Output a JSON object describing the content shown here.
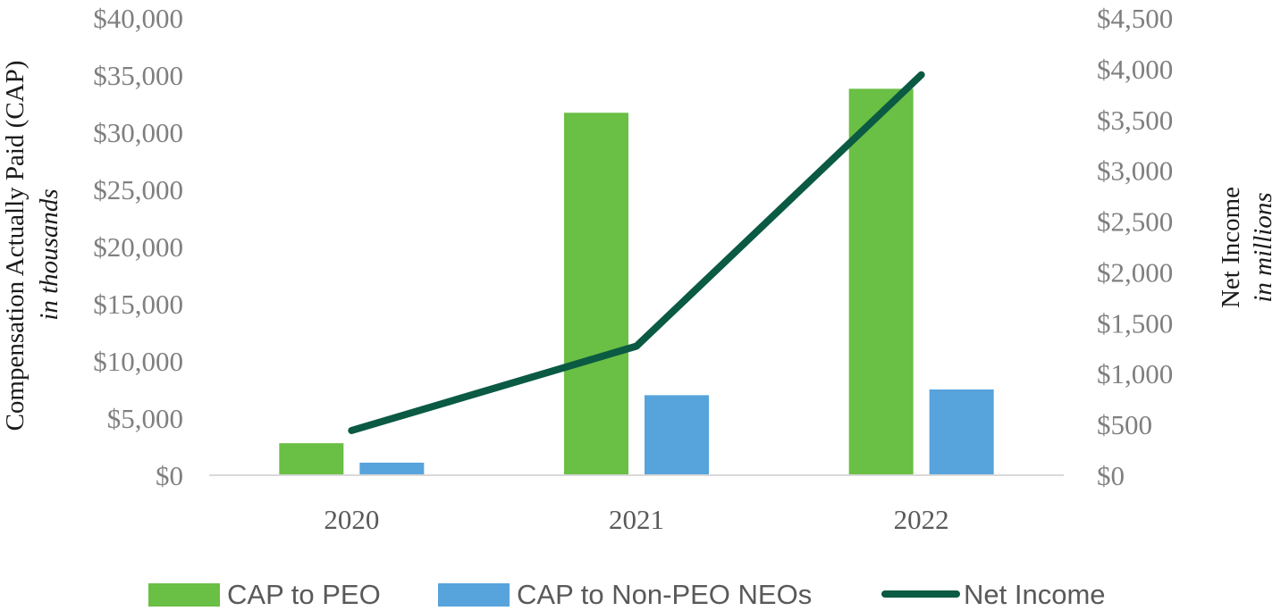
{
  "chart_data": {
    "type": "bar",
    "categories": [
      "2020",
      "2021",
      "2022"
    ],
    "series": [
      {
        "name": "CAP to PEO",
        "kind": "bar",
        "axis": "left",
        "color": "#6abf45",
        "values": [
          2800,
          31700,
          33800
        ]
      },
      {
        "name": "CAP to Non-PEO NEOs",
        "kind": "bar",
        "axis": "left",
        "color": "#57a3dc",
        "values": [
          1100,
          7000,
          7500
        ]
      },
      {
        "name": "Net Income",
        "kind": "line",
        "axis": "right",
        "color": "#0b5a43",
        "values": [
          440,
          1270,
          3940
        ]
      }
    ],
    "y_left": {
      "label": "Compensation Actually Paid (CAP)",
      "sublabel": "in thousands",
      "ylim": [
        0,
        40000
      ],
      "ticks": [
        "$0",
        "$5,000",
        "$10,000",
        "$15,000",
        "$20,000",
        "$25,000",
        "$30,000",
        "$35,000",
        "$40,000"
      ]
    },
    "y_right": {
      "label": "Net Income",
      "sublabel": "in millions",
      "ylim": [
        0,
        4500
      ],
      "ticks": [
        "$0",
        "$500",
        "$1,000",
        "$1,500",
        "$2,000",
        "$2,500",
        "$3,000",
        "$3,500",
        "$4,000",
        "$4,500"
      ]
    },
    "grid": false,
    "legend_position": "bottom"
  }
}
